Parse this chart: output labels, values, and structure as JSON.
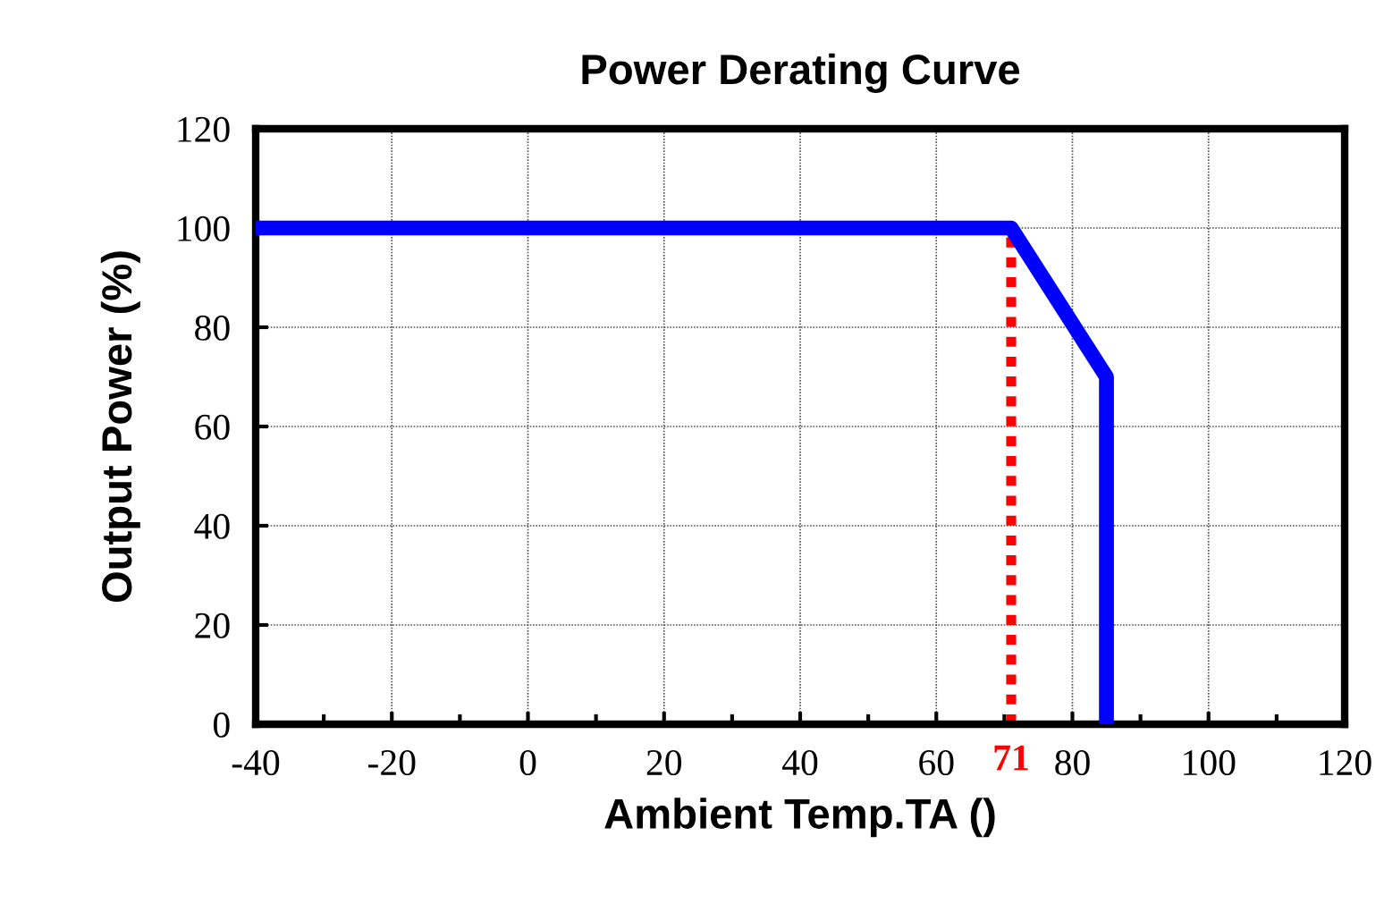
{
  "chart_data": {
    "type": "line",
    "title": "Power Derating Curve",
    "xlabel": "Ambient Temp.TA ()",
    "ylabel": "Output Power (%)",
    "x": [
      -40,
      71,
      85,
      85
    ],
    "series": [
      {
        "color": "#0000ff",
        "values": [
          100,
          100,
          70,
          0
        ]
      }
    ],
    "xlim": [
      -40,
      120
    ],
    "xticks": [
      -40,
      -20,
      0,
      20,
      40,
      60,
      80,
      100,
      120
    ],
    "ylim": [
      0,
      120
    ],
    "yticks": [
      0,
      20,
      40,
      60,
      80,
      100,
      120
    ],
    "grid": true,
    "marker": "none",
    "line_style": "solid",
    "ref_lines": [
      {
        "axis": "x",
        "value": 71,
        "label": "71",
        "color": "#ff0000",
        "line_style": "dotted"
      }
    ]
  }
}
